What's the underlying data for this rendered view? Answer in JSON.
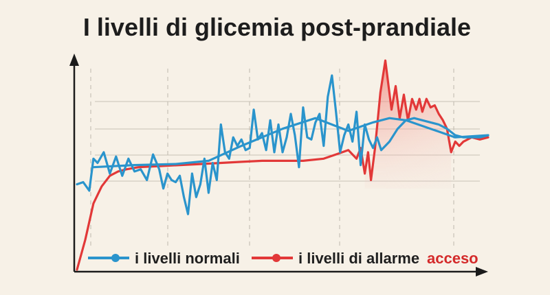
{
  "chart_data": {
    "type": "line",
    "title": "I livelli di glicemia post-prandiale",
    "xlabel": "",
    "ylabel": "",
    "xlim": [
      0,
      100
    ],
    "ylim": [
      0,
      100
    ],
    "grid": "horizontal",
    "legend_placement": "bottom",
    "legend_extra": "acceso",
    "colors": {
      "normal": "#2a94cc",
      "alarm": "#e23838",
      "alarm_fill": "#f3a9a2",
      "accent_text": "#d42a2a",
      "axis": "#1b1b1b",
      "grid": "#c7c1b6"
    },
    "series": [
      {
        "name": "i livelli normali",
        "color": "#2a94cc",
        "x": [
          0,
          1.5,
          3,
          4,
          5,
          6.5,
          8,
          9.5,
          11,
          12.5,
          14,
          15.5,
          17,
          18.5,
          20,
          21,
          22,
          23,
          24,
          25,
          26,
          27,
          28,
          29,
          30,
          31,
          32,
          33,
          34,
          35,
          36,
          37,
          38,
          39,
          40,
          41,
          42,
          43,
          44,
          45,
          46,
          47,
          48,
          49,
          50,
          51,
          52,
          53,
          54,
          55,
          56,
          57,
          58,
          59,
          60,
          61,
          62,
          63,
          64,
          65,
          66,
          67,
          68,
          69,
          70,
          71,
          72,
          73,
          74,
          75,
          76,
          78,
          80,
          82,
          84,
          86,
          88,
          90,
          92,
          94,
          96,
          98,
          100
        ],
        "y": [
          40,
          41,
          37,
          52,
          50,
          55,
          45,
          53,
          44,
          52,
          46,
          47,
          42,
          54,
          47,
          38,
          45,
          42,
          41,
          44,
          34,
          26,
          45,
          34,
          40,
          52,
          36,
          50,
          42,
          68,
          55,
          52,
          62,
          58,
          61,
          56,
          57,
          75,
          61,
          64,
          56,
          70,
          55,
          68,
          55,
          62,
          73,
          63,
          48,
          76,
          62,
          61,
          69,
          73,
          58,
          81,
          91,
          74,
          55,
          63,
          68,
          60,
          74,
          49,
          68,
          61,
          57,
          62,
          56,
          58,
          60,
          66,
          70,
          71,
          70,
          69,
          68,
          66,
          63,
          62,
          62,
          62,
          63
        ]
      },
      {
        "name": "i livelli di allarme",
        "color": "#e23838",
        "x": [
          0,
          2,
          4,
          6,
          8,
          10,
          12,
          15,
          20,
          25,
          30,
          35,
          40,
          45,
          50,
          55,
          60,
          63,
          66,
          68,
          69,
          70,
          70.8,
          71.5,
          72.5,
          73.8,
          75,
          76.5,
          77.5,
          78.5,
          79.5,
          80.5,
          81.5,
          82.5,
          83.3,
          84,
          85,
          86,
          87,
          88,
          89,
          90,
          91,
          92,
          93,
          94,
          96,
          98,
          100
        ],
        "y": [
          0,
          14,
          31,
          39,
          44,
          46,
          47,
          48,
          48.5,
          49,
          49.5,
          50,
          50.5,
          51,
          51,
          51,
          52,
          54,
          56,
          52,
          57,
          45,
          55,
          42,
          57,
          83,
          98,
          75,
          86,
          71,
          82,
          70,
          80,
          75,
          80,
          74,
          80,
          76,
          77,
          73,
          70,
          66,
          55,
          60,
          58,
          60,
          62,
          61,
          62
        ]
      }
    ]
  }
}
